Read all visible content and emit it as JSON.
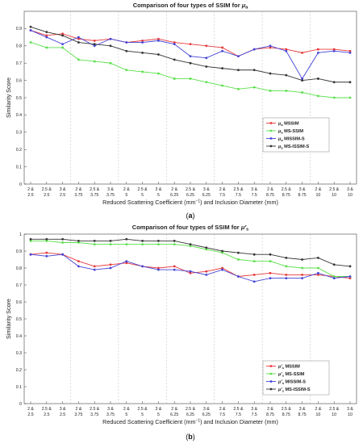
{
  "chart_data": [
    {
      "type": "line",
      "title": "Comparison of four types of SSIM for μ_a",
      "xlabel": "Reduced Scattering Coefficient (mm⁻¹) and Inclusion Diameter (mm)",
      "ylabel": "Similarity Score",
      "ylim": [
        0,
        1
      ],
      "yticks": [
        "0",
        "0.1",
        "0.2",
        "0.3",
        "0.4",
        "0.5",
        "0.6",
        "0.7",
        "0.8",
        "0.9"
      ],
      "grid": "vertical dashed",
      "legend_position": "right-middle",
      "caption": "(a)",
      "categories": [
        [
          "2 &",
          "2.5"
        ],
        [
          "2.5 &",
          "2.5"
        ],
        [
          "3 &",
          "2.5"
        ],
        [
          "2 &",
          "3.75"
        ],
        [
          "2.5 &",
          "3.75"
        ],
        [
          "3 &",
          "3.75"
        ],
        [
          "2 &",
          "5"
        ],
        [
          "2.5 &",
          "5"
        ],
        [
          "3 &",
          "5"
        ],
        [
          "2 &",
          "6.25"
        ],
        [
          "2.5 &",
          "6.25"
        ],
        [
          "3 &",
          "6.25"
        ],
        [
          "2 &",
          "7.5"
        ],
        [
          "2.5 &",
          "7.5"
        ],
        [
          "3 &",
          "7.5"
        ],
        [
          "2 &",
          "8.75"
        ],
        [
          "2.5 &",
          "8.75"
        ],
        [
          "3 &",
          "8.75"
        ],
        [
          "2 &",
          "10"
        ],
        [
          "2.5 &",
          "10"
        ],
        [
          "3 &",
          "10"
        ]
      ],
      "series": [
        {
          "name": "μ_a MSSIM",
          "color": "#e8383b",
          "values": [
            0.89,
            0.86,
            0.87,
            0.84,
            0.83,
            0.84,
            0.82,
            0.83,
            0.84,
            0.82,
            0.81,
            0.8,
            0.79,
            0.74,
            0.78,
            0.79,
            0.78,
            0.76,
            0.78,
            0.78,
            0.77
          ]
        },
        {
          "name": "μ_a MS-SSIM",
          "color": "#58e048",
          "values": [
            0.82,
            0.79,
            0.79,
            0.72,
            0.71,
            0.7,
            0.66,
            0.65,
            0.64,
            0.61,
            0.61,
            0.59,
            0.57,
            0.55,
            0.56,
            0.54,
            0.54,
            0.53,
            0.51,
            0.5,
            0.5
          ]
        },
        {
          "name": "μ_a MISSIM-S",
          "color": "#4444d8",
          "values": [
            0.89,
            0.85,
            0.81,
            0.85,
            0.8,
            0.84,
            0.82,
            0.82,
            0.83,
            0.81,
            0.74,
            0.73,
            0.77,
            0.74,
            0.78,
            0.8,
            0.77,
            0.61,
            0.76,
            0.77,
            0.76
          ]
        },
        {
          "name": "μ_a MS-ISSIM-S",
          "color": "#333333",
          "values": [
            0.91,
            0.88,
            0.86,
            0.82,
            0.81,
            0.8,
            0.77,
            0.76,
            0.75,
            0.72,
            0.7,
            0.68,
            0.67,
            0.66,
            0.66,
            0.64,
            0.63,
            0.6,
            0.61,
            0.59,
            0.59
          ]
        }
      ]
    },
    {
      "type": "line",
      "title": "Comparison of four types of SSIM for μ′_s",
      "xlabel": "Reduced Scattering Coefficient (mm⁻¹) and Inclusion Diameter (mm)",
      "ylabel": "Similarity Score",
      "ylim": [
        0,
        1
      ],
      "yticks": [
        "0",
        "0.1",
        "0.2",
        "0.3",
        "0.4",
        "0.5",
        "0.6",
        "0.7",
        "0.8",
        "0.9",
        "1"
      ],
      "grid": "vertical dashed",
      "legend_position": "bottom-right",
      "caption": "(b)",
      "categories": [
        [
          "2 &",
          "2.5"
        ],
        [
          "2.5 &",
          "2.5"
        ],
        [
          "3 &",
          "2.5"
        ],
        [
          "2 &",
          "3.75"
        ],
        [
          "2.5 &",
          "3.75"
        ],
        [
          "3 &",
          "3.75"
        ],
        [
          "2 &",
          "5"
        ],
        [
          "2.5 &",
          "5"
        ],
        [
          "3 &",
          "5"
        ],
        [
          "2 &",
          "6.25"
        ],
        [
          "2.5 &",
          "6.25"
        ],
        [
          "3 &",
          "6.25"
        ],
        [
          "2 &",
          "7.5"
        ],
        [
          "2.5 &",
          "7.5"
        ],
        [
          "3 &",
          "7.5"
        ],
        [
          "2 &",
          "8.75"
        ],
        [
          "2.5 &",
          "8.75"
        ],
        [
          "3 &",
          "8.75"
        ],
        [
          "2 &",
          "10"
        ],
        [
          "2.5 &",
          "10"
        ],
        [
          "3 &",
          "10"
        ]
      ],
      "series": [
        {
          "name": "μ′_s MSSIM",
          "color": "#e8383b",
          "values": [
            0.88,
            0.89,
            0.88,
            0.84,
            0.81,
            0.82,
            0.83,
            0.81,
            0.8,
            0.81,
            0.77,
            0.78,
            0.8,
            0.75,
            0.76,
            0.77,
            0.76,
            0.76,
            0.76,
            0.75,
            0.74
          ]
        },
        {
          "name": "μ′_s MS-SSIM",
          "color": "#58e048",
          "values": [
            0.96,
            0.96,
            0.95,
            0.95,
            0.94,
            0.94,
            0.94,
            0.94,
            0.94,
            0.94,
            0.93,
            0.91,
            0.89,
            0.85,
            0.84,
            0.84,
            0.81,
            0.8,
            0.8,
            0.75,
            0.75
          ]
        },
        {
          "name": "μ′_s MISSIM-S",
          "color": "#4444d8",
          "values": [
            0.88,
            0.87,
            0.88,
            0.81,
            0.79,
            0.8,
            0.84,
            0.81,
            0.79,
            0.79,
            0.78,
            0.76,
            0.79,
            0.75,
            0.72,
            0.74,
            0.74,
            0.74,
            0.77,
            0.74,
            0.75
          ]
        },
        {
          "name": "μ′_s MS-ISSIM-S",
          "color": "#333333",
          "values": [
            0.97,
            0.97,
            0.97,
            0.96,
            0.96,
            0.96,
            0.97,
            0.96,
            0.96,
            0.96,
            0.94,
            0.92,
            0.9,
            0.89,
            0.88,
            0.88,
            0.86,
            0.85,
            0.86,
            0.82,
            0.81
          ]
        }
      ]
    }
  ]
}
